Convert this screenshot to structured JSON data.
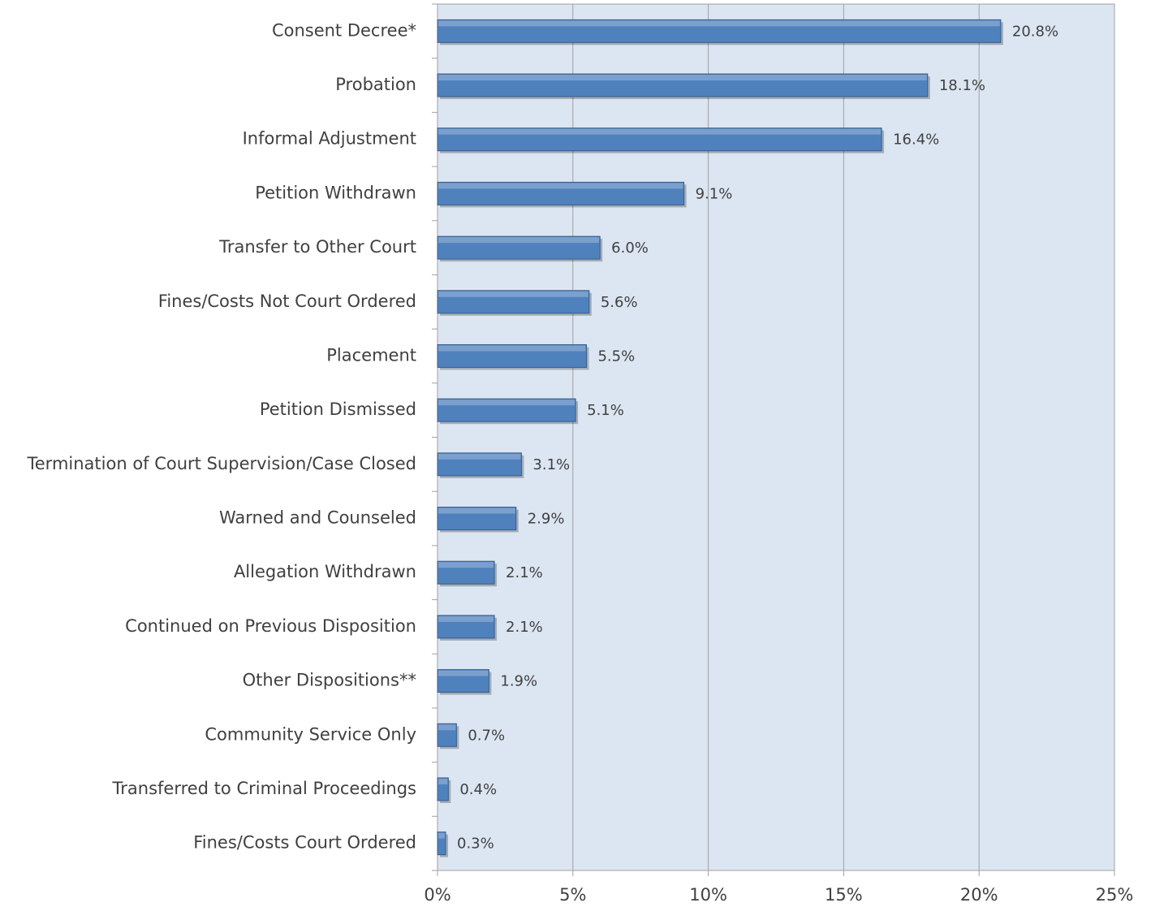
{
  "chart_data": {
    "type": "bar",
    "orientation": "horizontal",
    "categories": [
      "Consent Decree*",
      "Probation",
      "Informal Adjustment",
      "Petition Withdrawn",
      "Transfer to Other Court",
      "Fines/Costs Not Court Ordered",
      "Placement",
      "Petition Dismissed",
      "Termination of Court Supervision/Case Closed",
      "Warned and Counseled",
      "Allegation Withdrawn",
      "Continued on Previous Disposition",
      "Other Dispositions**",
      "Community Service Only",
      "Transferred to Criminal Proceedings",
      "Fines/Costs Court Ordered"
    ],
    "values": [
      20.8,
      18.1,
      16.4,
      9.1,
      6.0,
      5.6,
      5.5,
      5.1,
      3.1,
      2.9,
      2.1,
      2.1,
      1.9,
      0.7,
      0.4,
      0.3
    ],
    "value_labels": [
      "20.8%",
      "18.1%",
      "16.4%",
      "9.1%",
      "6.0%",
      "5.6%",
      "5.5%",
      "5.1%",
      "3.1%",
      "2.9%",
      "2.1%",
      "2.1%",
      "1.9%",
      "0.7%",
      "0.4%",
      "0.3%"
    ],
    "color": "#4f81bd",
    "xlim": [
      0,
      25
    ],
    "xticks": [
      {
        "value": 0,
        "label": "0%"
      },
      {
        "value": 5,
        "label": "5%"
      },
      {
        "value": 10,
        "label": "10%"
      },
      {
        "value": 15,
        "label": "15%"
      },
      {
        "value": 20,
        "label": "20%"
      },
      {
        "value": 25,
        "label": "25%"
      }
    ],
    "grid": true
  }
}
